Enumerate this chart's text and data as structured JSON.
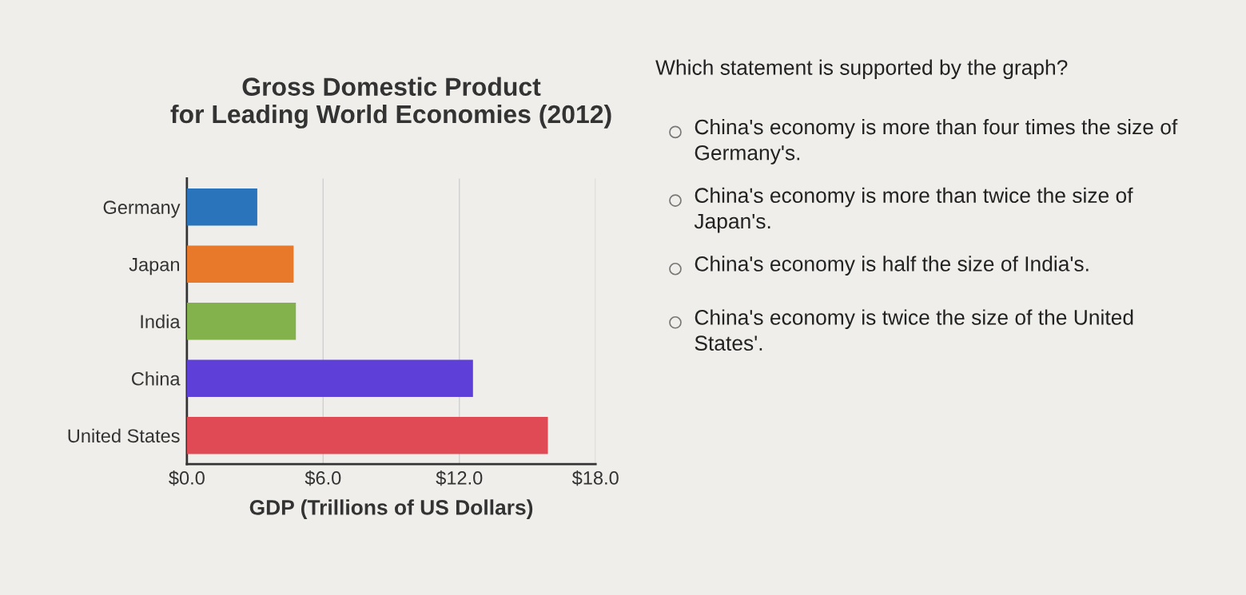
{
  "chart_data": {
    "type": "bar",
    "orientation": "horizontal",
    "title": "Gross Domestic Product\nfor Leading World Economies (2012)",
    "xlabel": "GDP (Trillions of US Dollars)",
    "categories": [
      "Germany",
      "Japan",
      "India",
      "China",
      "United States"
    ],
    "values": [
      3.1,
      4.7,
      4.8,
      12.6,
      15.9
    ],
    "colors": [
      "#2a74bb",
      "#e8792a",
      "#83b24c",
      "#5e3fd8",
      "#e04a55"
    ],
    "xlim": [
      0,
      18
    ],
    "xticks": [
      {
        "value": 0,
        "label": "$0.0"
      },
      {
        "value": 6,
        "label": "$6.0"
      },
      {
        "value": 12,
        "label": "$12.0"
      },
      {
        "value": 18,
        "label": "$18.0"
      }
    ],
    "grid": "x",
    "annotations": [
      "Which statement is supported by the graph?",
      "China's economy is more than four times the size of\nGermany's.",
      "China's economy is more than twice the size of\nJapan's.",
      "China's economy is half the size of India's.",
      "China's economy is twice the size of the United\nStates'."
    ]
  }
}
